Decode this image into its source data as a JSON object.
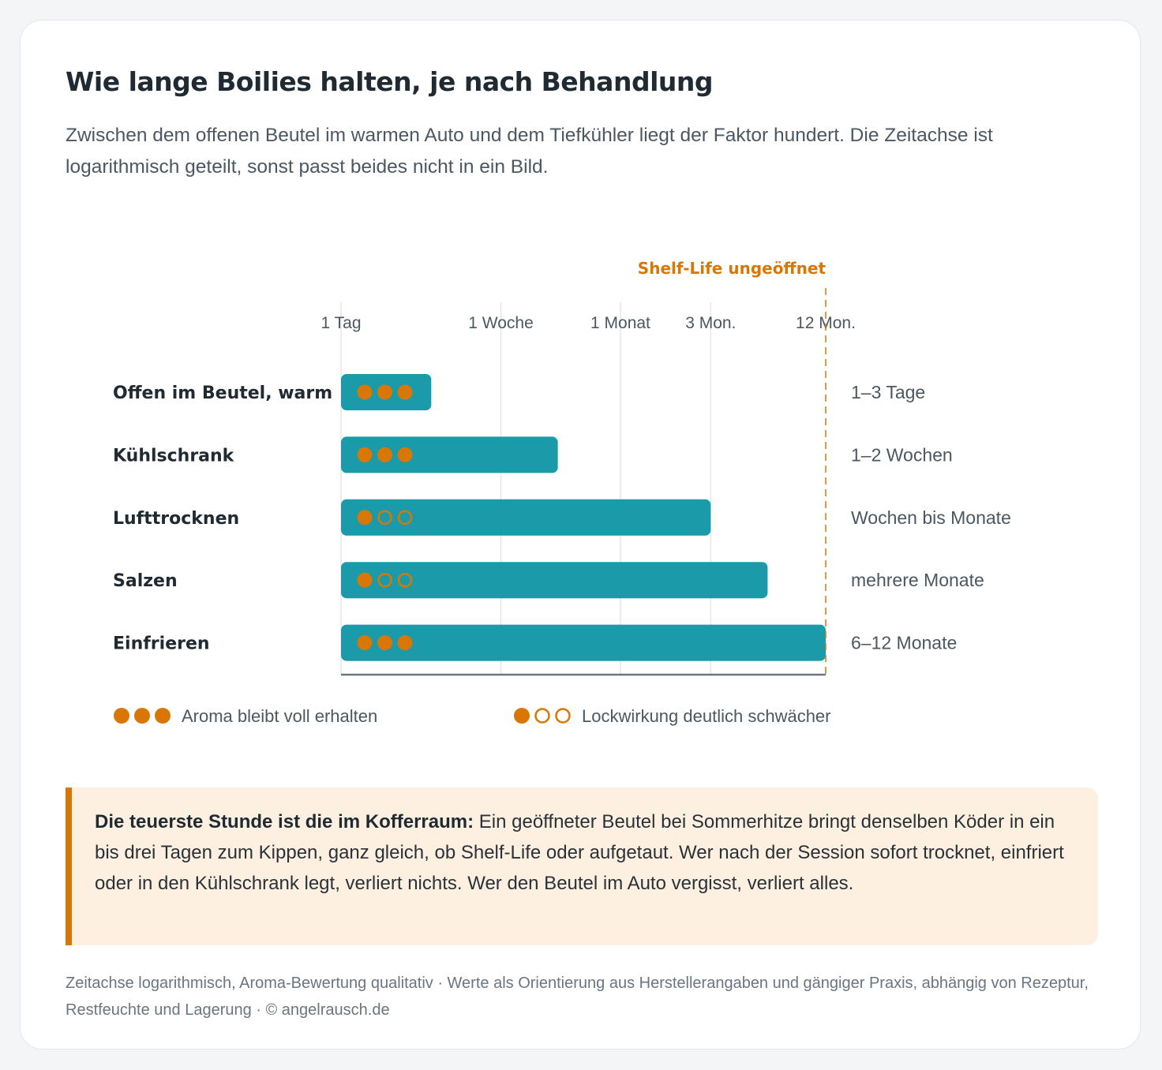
{
  "title": "Wie lange Boilies halten, je nach Behandlung",
  "subtitle": "Zwischen dem offenen Beutel im warmen Auto und dem Tiefkühler liegt der Faktor hundert. Die Zeitachse ist logarithmisch geteilt, sonst passt beides nicht in ein Bild.",
  "colors": {
    "bar": "#1b9aaa",
    "accent": "#d97706",
    "text_dark": "#1f2a33",
    "text_muted": "#4b5761",
    "grid": "#e3e6ea",
    "axis": "#6b7580",
    "callout_bg": "#fdf0e1"
  },
  "chart_data": {
    "type": "bar",
    "orientation": "horizontal",
    "x_scale": "log",
    "x_unit": "days",
    "xlim": [
      1,
      365
    ],
    "ticks": [
      {
        "label": "1 Tag",
        "value": 1
      },
      {
        "label": "1 Woche",
        "value": 7
      },
      {
        "label": "1 Monat",
        "value": 30
      },
      {
        "label": "3 Mon.",
        "value": 90
      },
      {
        "label": "12 Mon.",
        "value": 365
      }
    ],
    "reference_line": {
      "label": "Shelf-Life ungeöffnet",
      "value": 365
    },
    "grid": true,
    "categories": [
      "Offen im Beutel, warm",
      "Kühlschrank",
      "Lufttrocknen",
      "Salzen",
      "Einfrieren"
    ],
    "values": [
      3,
      14,
      90,
      180,
      365
    ],
    "range_labels": [
      "1–3 Tage",
      "1–2 Wochen",
      "Wochen bis Monate",
      "mehrere Monate",
      "6–12 Monate"
    ],
    "aroma": [
      3,
      3,
      1,
      1,
      3
    ],
    "aroma_max": 3,
    "legend": [
      {
        "label": "Aroma bleibt voll erhalten",
        "filled": 3
      },
      {
        "label": "Lockwirkung deutlich schwächer",
        "filled": 1
      }
    ]
  },
  "callout": {
    "lead": "Die teuerste Stunde ist die im Kofferraum:",
    "text": " Ein geöffneter Beutel bei Sommerhitze bringt denselben Köder in ein bis drei Tagen zum Kippen, ganz gleich, ob Shelf-Life oder aufgetaut. Wer nach der Session sofort trocknet, einfriert oder in den Kühlschrank legt, verliert nichts. Wer den Beutel im Auto vergisst, verliert alles."
  },
  "footnote": "Zeitachse logarithmisch, Aroma-Bewertung qualitativ · Werte als Orientierung aus Herstellerangaben und gängiger Praxis, abhängig von Rezeptur, Restfeuchte und Lagerung · © angelrausch.de"
}
